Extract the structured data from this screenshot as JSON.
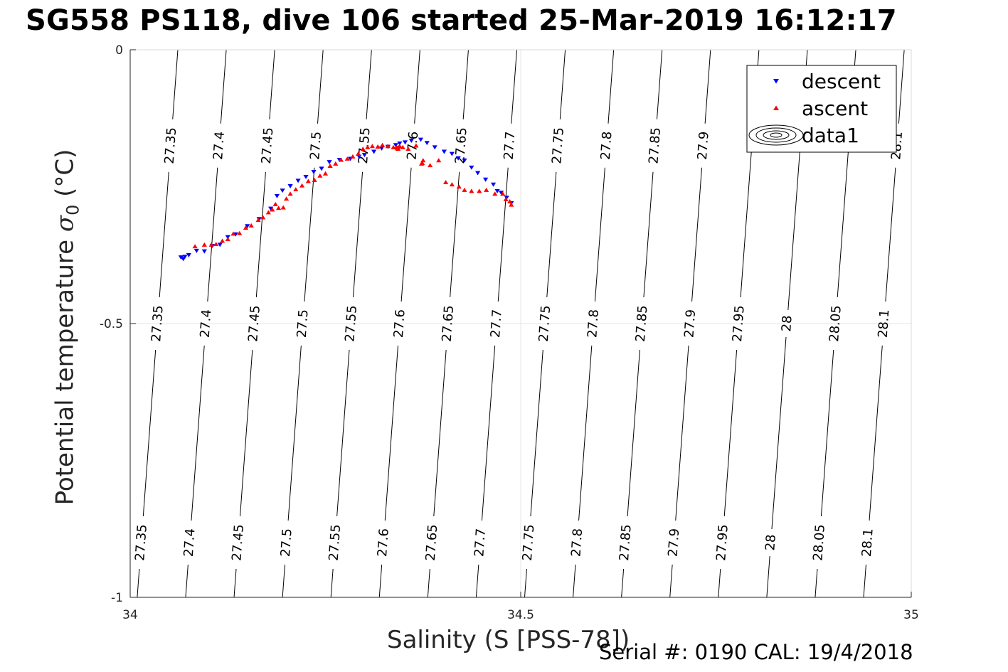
{
  "title": "SG558 PS118, dive 106 started 25-Mar-2019 16:12:17",
  "footer": "Serial #: 0190  CAL: 19/4/2018",
  "chart_data": {
    "type": "scatter",
    "title": "SG558 PS118, dive 106 started 25-Mar-2019 16:12:17",
    "xlabel": "Salinity (S [PSS-78])",
    "ylabel_prefix": "Potential temperature ",
    "ylabel_symbol": "σ",
    "ylabel_sub": "0",
    "ylabel_suffix": " (°C)",
    "xlim": [
      34,
      35
    ],
    "ylim": [
      -1,
      0
    ],
    "xticks": [
      34,
      34.5,
      35
    ],
    "xtick_labels": [
      "34",
      "34.5",
      "35"
    ],
    "yticks": [
      0,
      -0.5,
      -1
    ],
    "ytick_labels": [
      "0",
      "-0.5",
      "-1"
    ],
    "grid": true,
    "legend": {
      "position": "top-right",
      "entries": [
        {
          "label": "descent",
          "color": "#0000ff",
          "marker": "triangle-down"
        },
        {
          "label": "ascent",
          "color": "#ff0000",
          "marker": "triangle-up"
        },
        {
          "label": "data1",
          "color": "#000000",
          "marker": "contour"
        }
      ]
    },
    "contours": {
      "label_rows_y": [
        -0.175,
        -0.5,
        -0.9
      ],
      "lines": [
        {
          "level": "27.35",
          "x_top": 34.061,
          "x_bottom": 34.009
        },
        {
          "level": "27.4",
          "x_top": 34.123,
          "x_bottom": 34.071
        },
        {
          "level": "27.45",
          "x_top": 34.185,
          "x_bottom": 34.133
        },
        {
          "level": "27.5",
          "x_top": 34.247,
          "x_bottom": 34.195
        },
        {
          "level": "27.55",
          "x_top": 34.309,
          "x_bottom": 34.257
        },
        {
          "level": "27.6",
          "x_top": 34.371,
          "x_bottom": 34.319
        },
        {
          "level": "27.65",
          "x_top": 34.433,
          "x_bottom": 34.381
        },
        {
          "level": "27.7",
          "x_top": 34.495,
          "x_bottom": 34.443
        },
        {
          "level": "27.75",
          "x_top": 34.557,
          "x_bottom": 34.505
        },
        {
          "level": "27.8",
          "x_top": 34.619,
          "x_bottom": 34.567
        },
        {
          "level": "27.85",
          "x_top": 34.681,
          "x_bottom": 34.629
        },
        {
          "level": "27.9",
          "x_top": 34.743,
          "x_bottom": 34.691
        },
        {
          "level": "27.95",
          "x_top": 34.805,
          "x_bottom": 34.753
        },
        {
          "level": "28",
          "x_top": 34.867,
          "x_bottom": 34.815
        },
        {
          "level": "28.05",
          "x_top": 34.929,
          "x_bottom": 34.877
        },
        {
          "level": "28.1",
          "x_top": 34.991,
          "x_bottom": 34.939
        }
      ],
      "row_levels": [
        [
          "27.35",
          "27.4",
          "27.45",
          "27.5",
          "27.55",
          "27.6",
          "27.65",
          "27.7",
          "27.75",
          "27.8",
          "27.85",
          "27.9",
          "",
          "",
          "",
          "28.1"
        ],
        [
          "27.35",
          "27.4",
          "27.45",
          "27.5",
          "27.55",
          "27.6",
          "27.65",
          "27.7",
          "27.75",
          "27.8",
          "27.85",
          "27.9",
          "27.95",
          "28",
          "28.05",
          "28.1"
        ],
        [
          "27.35",
          "27.4",
          "27.45",
          "27.5",
          "27.55",
          "27.6",
          "27.65",
          "27.7",
          "27.75",
          "27.8",
          "27.85",
          "27.9",
          "27.95",
          "28",
          "28.05",
          "28.1"
        ]
      ]
    },
    "series": [
      {
        "name": "descent",
        "marker": "triangle-down",
        "color": "#0000ff",
        "points": [
          [
            34.065,
            -0.379
          ],
          [
            34.068,
            -0.382
          ],
          [
            34.07,
            -0.378
          ],
          [
            34.075,
            -0.375
          ],
          [
            34.085,
            -0.367
          ],
          [
            34.095,
            -0.368
          ],
          [
            34.105,
            -0.358
          ],
          [
            34.115,
            -0.356
          ],
          [
            34.125,
            -0.342
          ],
          [
            34.135,
            -0.337
          ],
          [
            34.15,
            -0.322
          ],
          [
            34.165,
            -0.309
          ],
          [
            34.18,
            -0.29
          ],
          [
            34.188,
            -0.267
          ],
          [
            34.195,
            -0.257
          ],
          [
            34.205,
            -0.249
          ],
          [
            34.215,
            -0.239
          ],
          [
            34.225,
            -0.232
          ],
          [
            34.235,
            -0.223
          ],
          [
            34.245,
            -0.217
          ],
          [
            34.255,
            -0.205
          ],
          [
            34.268,
            -0.201
          ],
          [
            34.282,
            -0.199
          ],
          [
            34.293,
            -0.195
          ],
          [
            34.3,
            -0.192
          ],
          [
            34.312,
            -0.186
          ],
          [
            34.322,
            -0.18
          ],
          [
            34.33,
            -0.177
          ],
          [
            34.34,
            -0.174
          ],
          [
            34.345,
            -0.171
          ],
          [
            34.352,
            -0.169
          ],
          [
            34.36,
            -0.166
          ],
          [
            34.372,
            -0.164
          ],
          [
            34.38,
            -0.17
          ],
          [
            34.39,
            -0.178
          ],
          [
            34.402,
            -0.186
          ],
          [
            34.412,
            -0.19
          ],
          [
            34.42,
            -0.198
          ],
          [
            34.428,
            -0.202
          ],
          [
            34.437,
            -0.215
          ],
          [
            34.445,
            -0.225
          ],
          [
            34.455,
            -0.237
          ],
          [
            34.465,
            -0.246
          ],
          [
            34.47,
            -0.258
          ],
          [
            34.475,
            -0.261
          ],
          [
            34.482,
            -0.27
          ],
          [
            34.488,
            -0.28
          ]
        ]
      },
      {
        "name": "ascent",
        "marker": "triangle-up",
        "color": "#ff0000",
        "points": [
          [
            34.083,
            -0.359
          ],
          [
            34.095,
            -0.356
          ],
          [
            34.104,
            -0.356
          ],
          [
            34.11,
            -0.355
          ],
          [
            34.118,
            -0.349
          ],
          [
            34.125,
            -0.346
          ],
          [
            34.132,
            -0.336
          ],
          [
            34.14,
            -0.335
          ],
          [
            34.148,
            -0.325
          ],
          [
            34.155,
            -0.321
          ],
          [
            34.164,
            -0.311
          ],
          [
            34.17,
            -0.306
          ],
          [
            34.177,
            -0.297
          ],
          [
            34.182,
            -0.292
          ],
          [
            34.186,
            -0.282
          ],
          [
            34.19,
            -0.289
          ],
          [
            34.196,
            -0.288
          ],
          [
            34.2,
            -0.272
          ],
          [
            34.205,
            -0.263
          ],
          [
            34.212,
            -0.255
          ],
          [
            34.22,
            -0.248
          ],
          [
            34.228,
            -0.24
          ],
          [
            34.236,
            -0.238
          ],
          [
            34.243,
            -0.23
          ],
          [
            34.25,
            -0.226
          ],
          [
            34.256,
            -0.212
          ],
          [
            34.263,
            -0.208
          ],
          [
            34.27,
            -0.201
          ],
          [
            34.278,
            -0.199
          ],
          [
            34.285,
            -0.195
          ],
          [
            34.292,
            -0.19
          ],
          [
            34.298,
            -0.181
          ],
          [
            34.304,
            -0.178
          ],
          [
            34.31,
            -0.176
          ],
          [
            34.317,
            -0.177
          ],
          [
            34.323,
            -0.174
          ],
          [
            34.33,
            -0.176
          ],
          [
            34.337,
            -0.178
          ],
          [
            34.342,
            -0.18
          ],
          [
            34.343,
            -0.178
          ],
          [
            34.343,
            -0.181
          ],
          [
            34.341,
            -0.178
          ],
          [
            34.345,
            -0.176
          ],
          [
            34.349,
            -0.178
          ],
          [
            34.356,
            -0.181
          ],
          [
            34.366,
            -0.175
          ],
          [
            34.375,
            -0.202
          ],
          [
            34.373,
            -0.208
          ],
          [
            34.374,
            -0.207
          ],
          [
            34.384,
            -0.211
          ],
          [
            34.395,
            -0.202
          ],
          [
            34.404,
            -0.242
          ],
          [
            34.412,
            -0.246
          ],
          [
            34.421,
            -0.25
          ],
          [
            34.428,
            -0.256
          ],
          [
            34.437,
            -0.258
          ],
          [
            34.447,
            -0.258
          ],
          [
            34.456,
            -0.256
          ],
          [
            34.467,
            -0.263
          ],
          [
            34.477,
            -0.263
          ],
          [
            34.481,
            -0.273
          ],
          [
            34.486,
            -0.277
          ],
          [
            34.488,
            -0.283
          ]
        ]
      }
    ]
  }
}
